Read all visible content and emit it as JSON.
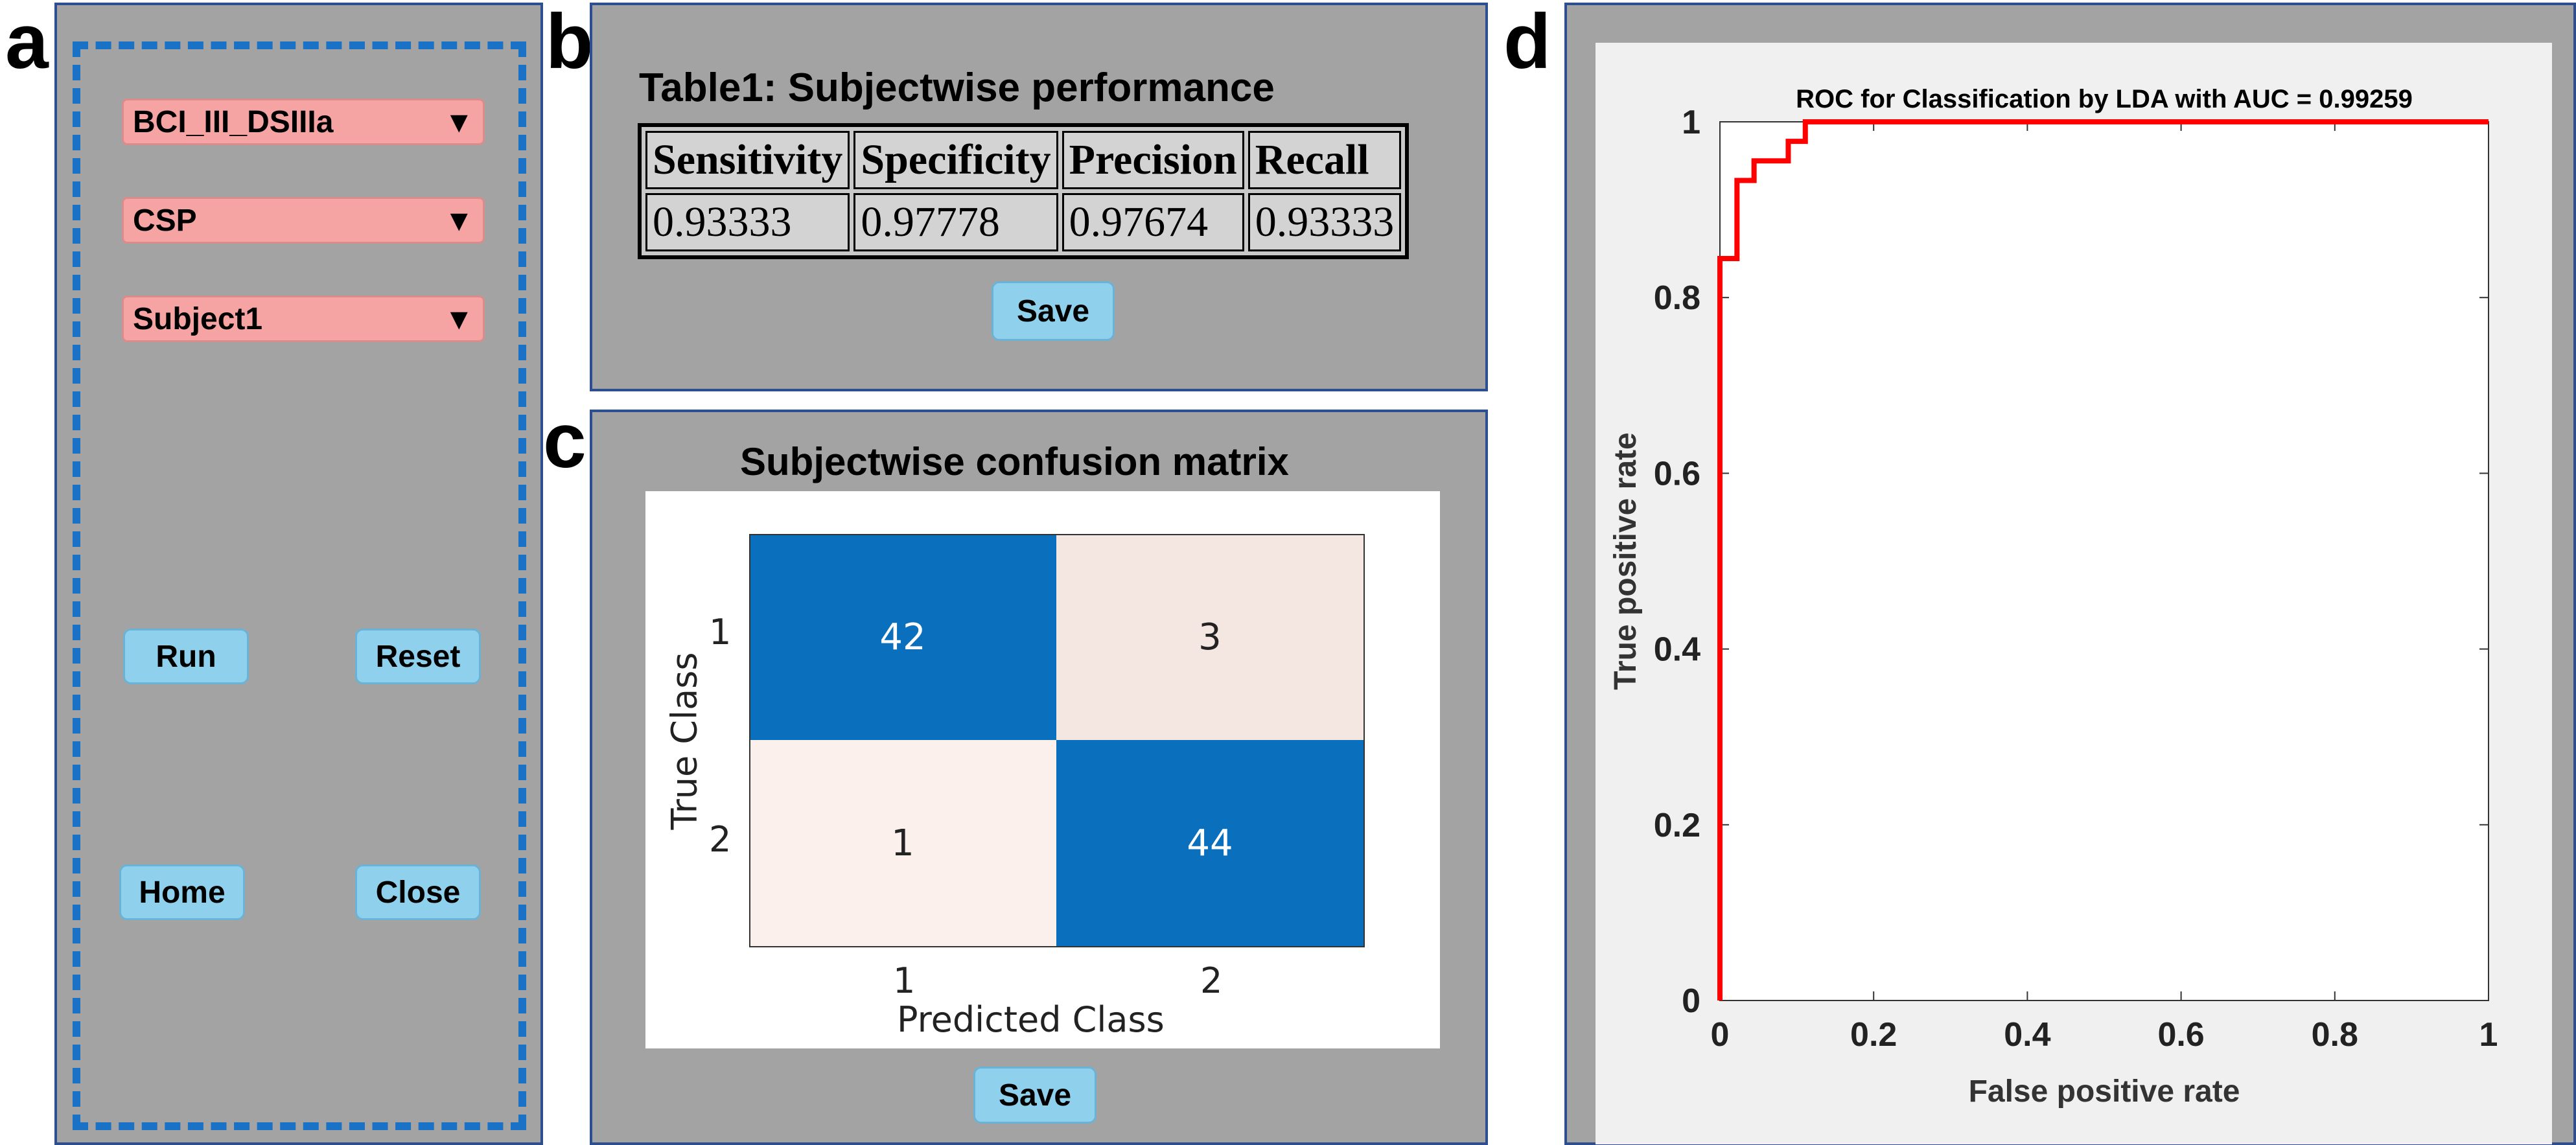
{
  "panel_labels": {
    "a": "a",
    "b": "b",
    "c": "c",
    "d": "d"
  },
  "controls": {
    "dataset_select": "BCI_III_DSIIIa",
    "method_select": "CSP",
    "subject_select": "Subject1",
    "run_label": "Run",
    "reset_label": "Reset",
    "home_label": "Home",
    "close_label": "Close",
    "dropdown_arrow": "▼"
  },
  "table": {
    "title": "Table1: Subjectwise performance",
    "headers": [
      "Sensitivity",
      "Specificity",
      "Precision",
      "Recall"
    ],
    "values": [
      "0.93333",
      "0.97778",
      "0.97674",
      "0.93333"
    ],
    "save_label": "Save"
  },
  "confusion": {
    "title": "Subjectwise confusion matrix",
    "xlabel": "Predicted Class",
    "ylabel": "True Class",
    "row_labels": [
      "1",
      "2"
    ],
    "col_labels": [
      "1",
      "2"
    ],
    "cells": [
      [
        "42",
        "3"
      ],
      [
        "1",
        "44"
      ]
    ],
    "save_label": "Save",
    "colors": {
      "high": "#0a6fbd",
      "low_a": "#f4e6e1",
      "low_b": "#fbf0ec"
    }
  },
  "chart_data": {
    "type": "line",
    "title": "ROC for Classification by LDA with AUC = 0.99259",
    "xlabel": "False positive rate",
    "ylabel": "True positive rate",
    "xlim": [
      0,
      1
    ],
    "ylim": [
      0,
      1
    ],
    "xticks": [
      "0",
      "0.2",
      "0.4",
      "0.6",
      "0.8",
      "1"
    ],
    "yticks": [
      "0",
      "0.2",
      "0.4",
      "0.6",
      "0.8",
      "1"
    ],
    "grid": false,
    "series": [
      {
        "color": "#ff0000",
        "x": [
          0,
          0,
          0.0222,
          0.0222,
          0.0444,
          0.0444,
          0.0889,
          0.0889,
          0.1111,
          0.1111,
          1
        ],
        "y": [
          0,
          0.8444,
          0.8444,
          0.9333,
          0.9333,
          0.9556,
          0.9556,
          0.9778,
          0.9778,
          1.0,
          1.0
        ]
      }
    ]
  }
}
